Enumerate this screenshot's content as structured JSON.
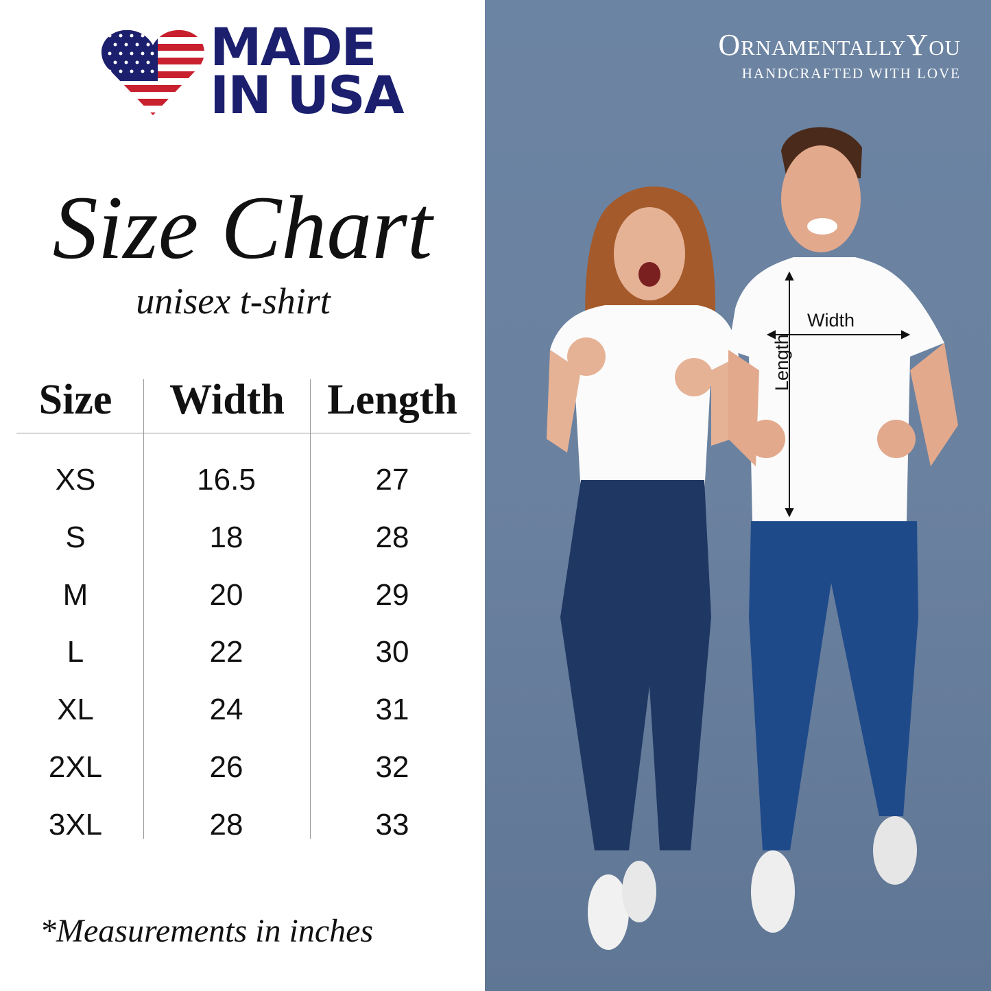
{
  "badge": {
    "line1": "MADE",
    "line2": "IN USA",
    "flag_colors": {
      "blue": "#1b1f6e",
      "red": "#c8202e"
    }
  },
  "title": "Size Chart",
  "subtitle": "unisex t-shirt",
  "table": {
    "headers": [
      "Size",
      "Width",
      "Length"
    ],
    "rows": [
      [
        "XS",
        "16.5",
        "27"
      ],
      [
        "S",
        "18",
        "28"
      ],
      [
        "M",
        "20",
        "29"
      ],
      [
        "L",
        "22",
        "30"
      ],
      [
        "XL",
        "24",
        "31"
      ],
      [
        "2XL",
        "26",
        "32"
      ],
      [
        "3XL",
        "28",
        "33"
      ]
    ]
  },
  "footnote": "*Measurements in inches",
  "brand": {
    "name": "OrnamentallyYou",
    "tagline": "HANDCRAFTED WITH LOVE"
  },
  "photo": {
    "width_label": "Width",
    "length_label": "Length",
    "background": "#6a819f"
  }
}
